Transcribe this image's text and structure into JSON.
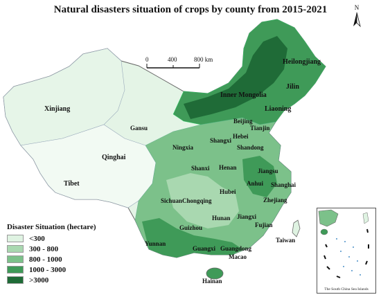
{
  "title": "Natural disasters situation of crops by county from 2015-2021",
  "north_arrow": {
    "label": "N",
    "icon": "north-arrow-icon"
  },
  "scale_bar": {
    "ticks": [
      "0",
      "400",
      "800 km"
    ]
  },
  "legend": {
    "title": "Disaster Situation (hectare)",
    "classes": [
      {
        "label": "<300",
        "color": "#dff3e2"
      },
      {
        "label": "300 - 800",
        "color": "#a9d8b0"
      },
      {
        "label": "800 - 1000",
        "color": "#7cc18a"
      },
      {
        "label": "1000 - 3000",
        "color": "#3f9a58"
      },
      {
        "label": ">3000",
        "color": "#1f6b37"
      }
    ]
  },
  "regions": {
    "heilongjiang": "Heilongjiang",
    "jilin": "Jilin",
    "inner_mongolia": "Inner Mongolia",
    "liaoning": "Liaoning",
    "xinjiang": "Xinjiang",
    "beijing": "Beijing",
    "tianjin": "Tianjin",
    "gansu": "Gansu",
    "hebei": "Hebei",
    "ningxia": "Ningxia",
    "shanxi_a": "Shangxi",
    "shandong": "Shandong",
    "qinghai": "Qinghai",
    "shanxi_b": "Shanxi",
    "henan": "Henan",
    "jiangsu": "Jiangsu",
    "tibet": "Tibet",
    "anhui": "Anhui",
    "shanghai": "Shanghai",
    "hubei": "Hubei",
    "sichuan": "Sichuan",
    "chongqing": "Chongqing",
    "zhejiang": "Zhejiang",
    "hunan": "Hunan",
    "jiangxi": "Jiangxi",
    "guizhou": "Guizhou",
    "fujian": "Fujian",
    "yunnan": "Yunnan",
    "taiwan": "Taiwan",
    "guangxi": "Guangxi",
    "guangdong": "Guangdong",
    "macao": "Macao",
    "hainan": "Hainan"
  },
  "inset_caption": "The South China Sea Islands"
}
